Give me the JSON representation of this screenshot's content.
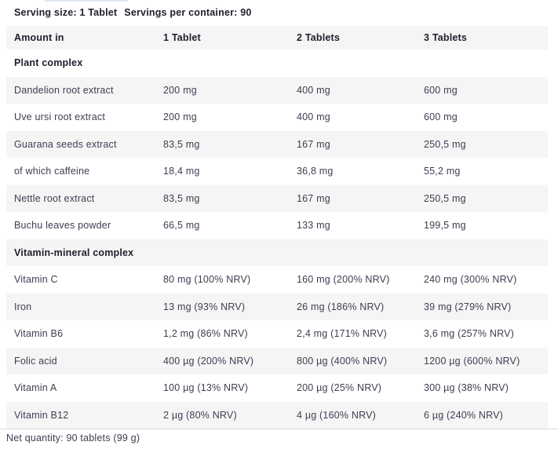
{
  "serving_info": {
    "serving_size": "Serving size: 1 Tablet",
    "servings_per_container": "Servings per container: 90"
  },
  "table": {
    "header": [
      "Amount in",
      "1 Tablet",
      "2 Tablets",
      "3 Tablets"
    ],
    "rows": [
      {
        "type": "section",
        "label": "Plant complex"
      },
      {
        "type": "data",
        "label": "Dandelion root extract",
        "values": [
          "200 mg",
          "400 mg",
          "600 mg"
        ]
      },
      {
        "type": "data",
        "label": "Uve ursi root extract",
        "values": [
          "200 mg",
          "400 mg",
          "600 mg"
        ]
      },
      {
        "type": "data",
        "label": "Guarana seeds extract",
        "values": [
          "83,5 mg",
          "167 mg",
          "250,5 mg"
        ]
      },
      {
        "type": "data",
        "label": "of which caffeine",
        "values": [
          "18,4 mg",
          "36,8 mg",
          "55,2 mg"
        ]
      },
      {
        "type": "data",
        "label": "Nettle root extract",
        "values": [
          "83,5 mg",
          "167 mg",
          "250,5 mg"
        ]
      },
      {
        "type": "data",
        "label": "Buchu leaves powder",
        "values": [
          "66,5 mg",
          "133 mg",
          "199,5 mg"
        ]
      },
      {
        "type": "section",
        "label": "Vitamin-mineral complex"
      },
      {
        "type": "data",
        "label": "Vitamin C",
        "values": [
          "80 mg (100% NRV)",
          "160 mg (200% NRV)",
          "240 mg (300% NRV)"
        ]
      },
      {
        "type": "data",
        "label": "Iron",
        "values": [
          "13 mg (93% NRV)",
          "26 mg (186% NRV)",
          "39 mg (279% NRV)"
        ]
      },
      {
        "type": "data",
        "label": "Vitamin B6",
        "values": [
          "1,2 mg (86% NRV)",
          "2,4 mg (171% NRV)",
          "3,6 mg (257% NRV)"
        ]
      },
      {
        "type": "data",
        "label": "Folic acid",
        "values": [
          "400 µg (200% NRV)",
          "800 µg (400% NRV)",
          "1200 µg (600% NRV)"
        ]
      },
      {
        "type": "data",
        "label": "Vitamin A",
        "values": [
          "100 µg (13% NRV)",
          "200 µg (25% NRV)",
          "300 µg (38% NRV)"
        ]
      },
      {
        "type": "data",
        "label": "Vitamin B12",
        "values": [
          "2 µg (80% NRV)",
          "4 µg (160% NRV)",
          "6 µg (240% NRV)"
        ]
      }
    ]
  },
  "footer": {
    "net_quantity": "Net quantity: 90 tablets (99 g)"
  },
  "colors": {
    "stripe": "#f5f5f6",
    "body_text": "#3e3e50",
    "heading_text": "#20202f",
    "rule": "#d9d9d9",
    "background": "#ffffff"
  }
}
